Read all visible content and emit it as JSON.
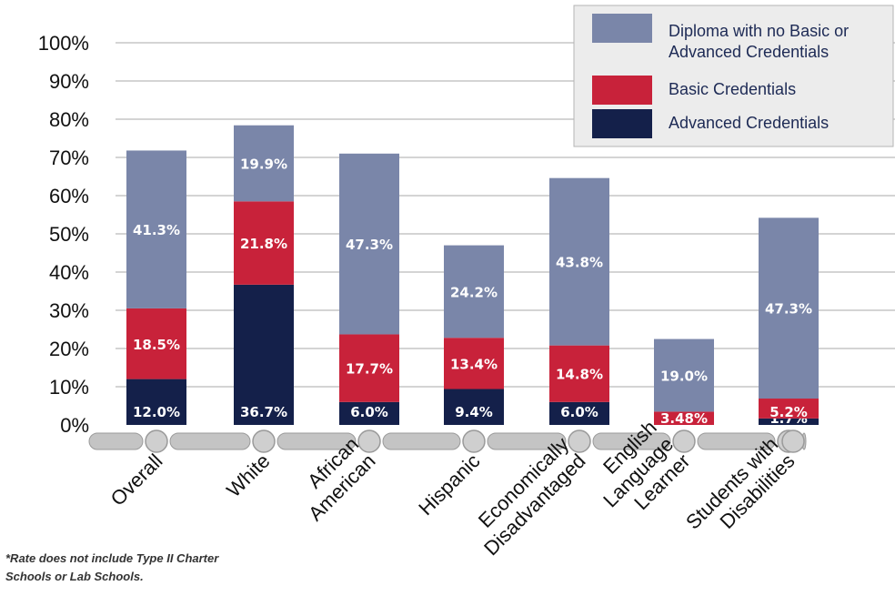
{
  "chart_data": {
    "type": "bar",
    "stacked": true,
    "categories": [
      [
        "Overall"
      ],
      [
        "White"
      ],
      [
        "African",
        "American"
      ],
      [
        "Hispanic"
      ],
      [
        "Economically",
        "Disadvantaged"
      ],
      [
        "English",
        "Language",
        "Learner"
      ],
      [
        "Students with",
        "Disabilities"
      ]
    ],
    "series": [
      {
        "name": "Advanced Credentials",
        "color": "#14204a",
        "values": [
          12.0,
          36.7,
          6.0,
          9.4,
          6.0,
          0,
          1.7
        ],
        "labels": [
          "12.0%",
          "36.7%",
          "6.0%",
          "9.4%",
          "6.0%",
          "",
          "1.7%"
        ]
      },
      {
        "name": "Basic Credentials",
        "color": "#c8223a",
        "values": [
          18.5,
          21.8,
          17.7,
          13.4,
          14.8,
          3.48,
          5.2
        ],
        "labels": [
          "18.5%",
          "21.8%",
          "17.7%",
          "13.4%",
          "14.8%",
          "3.48%",
          "5.2%"
        ]
      },
      {
        "name": "Diploma with no Basic or Advanced Credentials",
        "legend_lines": [
          "Diploma with no Basic or",
          "Advanced Credentials"
        ],
        "color": "#7a86a9",
        "values": [
          41.3,
          19.9,
          47.3,
          24.2,
          43.8,
          19.0,
          47.3
        ],
        "labels": [
          "41.3%",
          "19.9%",
          "47.3%",
          "24.2%",
          "43.8%",
          "19.0%",
          "47.3%"
        ]
      }
    ],
    "ylim": [
      0,
      100
    ],
    "yticks": [
      "0%",
      "10%",
      "20%",
      "30%",
      "40%",
      "50%",
      "60%",
      "70%",
      "80%",
      "90%",
      "100%"
    ],
    "grid": true,
    "legend_position": "top-right",
    "legend_order": [
      2,
      1,
      0
    ]
  },
  "footnote": {
    "line1": "*Rate does not include Type II Charter",
    "line2": "Schools or Lab Schools."
  }
}
